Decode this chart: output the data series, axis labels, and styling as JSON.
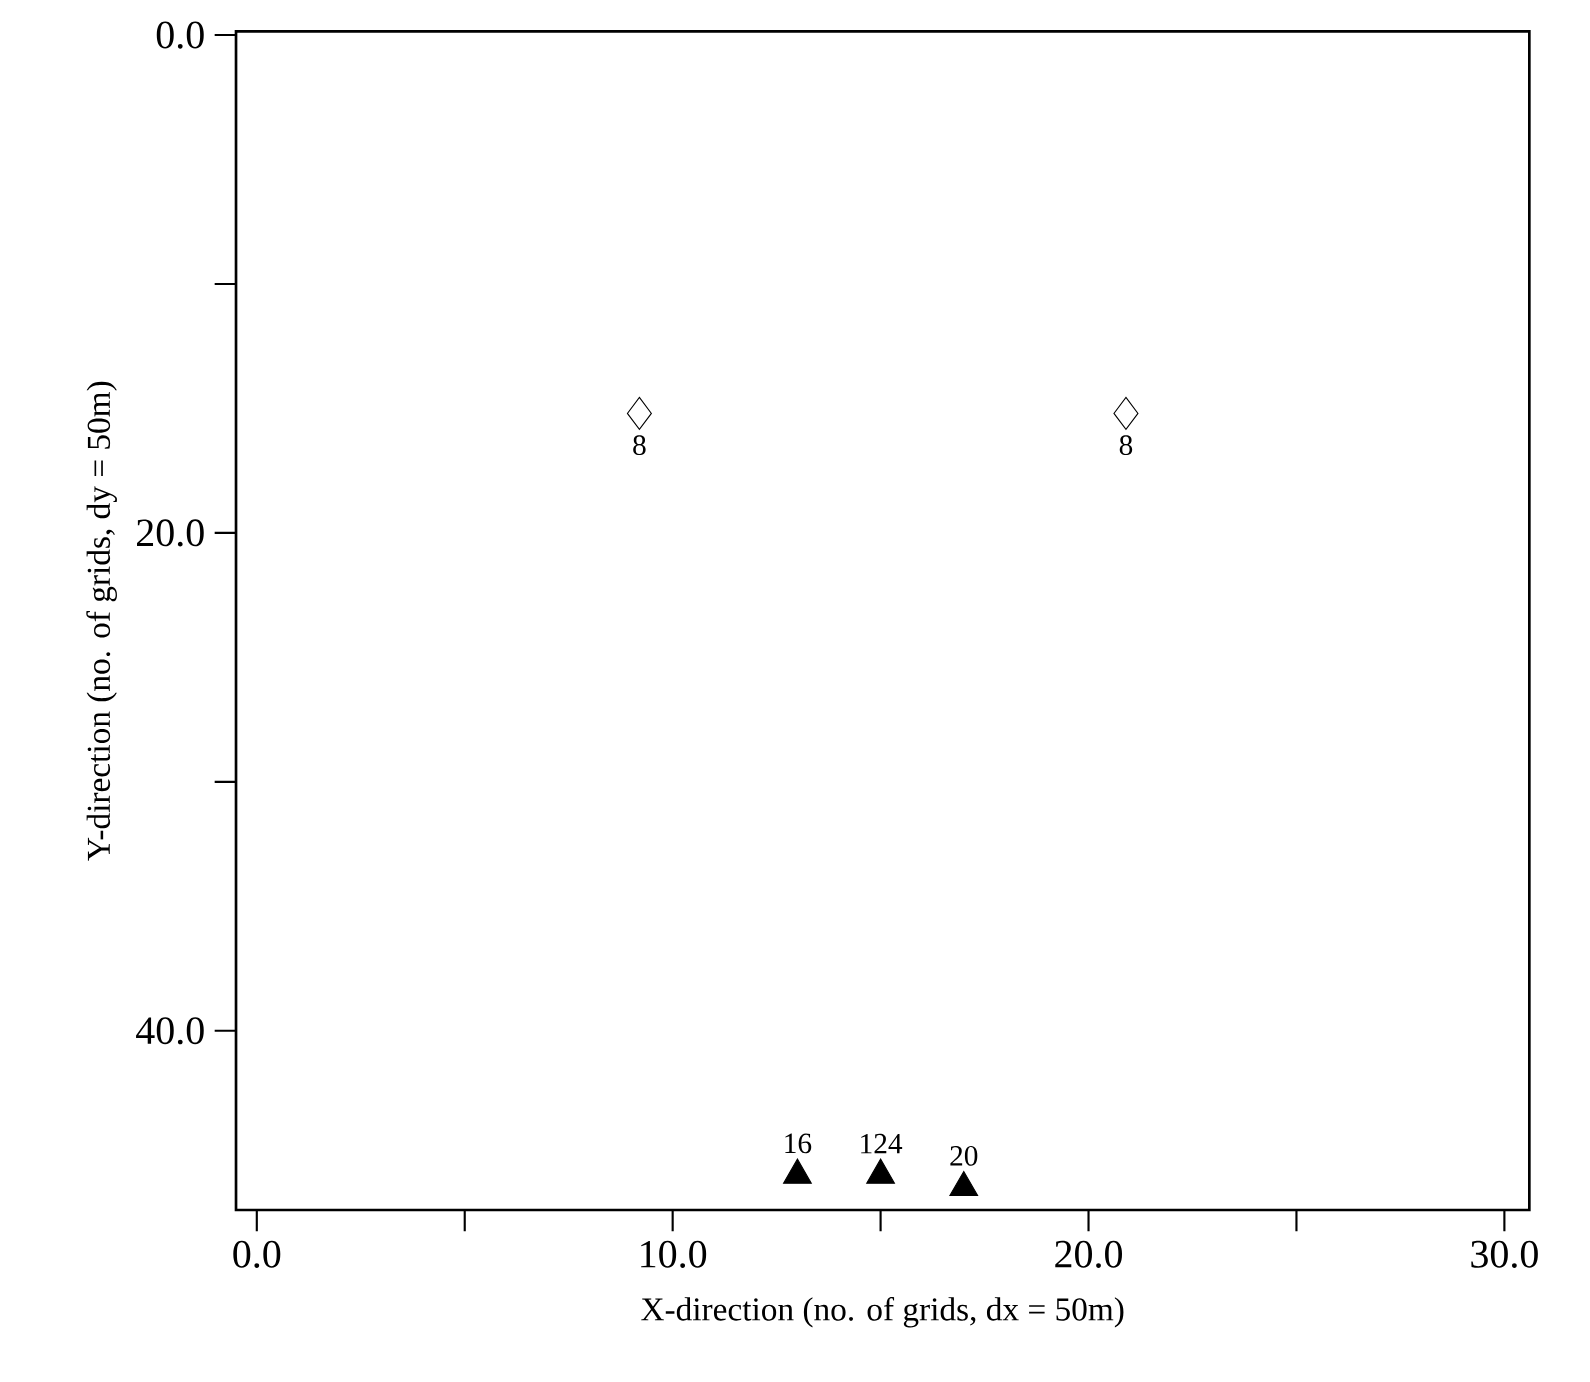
{
  "chart_data": {
    "type": "scatter",
    "xlabel": "X-direction (no. of grids,  dx = 50m)",
    "ylabel": "Y-direction (no. of grids, dy = 50m)",
    "xlim": [
      -0.5,
      30.6
    ],
    "ylim": [
      47.2,
      -0.15
    ],
    "xticks": [
      {
        "value": 0,
        "label": "0.0"
      },
      {
        "value": 5,
        "label": null
      },
      {
        "value": 10,
        "label": "10.0"
      },
      {
        "value": 15,
        "label": null
      },
      {
        "value": 20,
        "label": "20.0"
      },
      {
        "value": 25,
        "label": null
      },
      {
        "value": 30,
        "label": "30.0"
      }
    ],
    "yticks": [
      {
        "value": 0,
        "label": "0.0"
      },
      {
        "value": 10,
        "label": null
      },
      {
        "value": 20,
        "label": "20.0"
      },
      {
        "value": 30,
        "label": null
      },
      {
        "value": 40,
        "label": "40.0"
      }
    ],
    "series": [
      {
        "color": "#000000",
        "marker": "diamond",
        "x": [
          9.2,
          20.9
        ],
        "values": [
          15.2,
          15.2
        ]
      },
      {
        "color": "#000000",
        "marker": "triangle",
        "x": [
          13.0,
          15.0,
          17.0
        ],
        "values": [
          45.8,
          45.8,
          46.3
        ]
      }
    ],
    "annotations": [
      {
        "text": "8",
        "x": 9.2,
        "y": 15.2
      },
      {
        "text": "8",
        "x": 20.9,
        "y": 15.2
      },
      {
        "text": "16",
        "x": 13.0,
        "y": 45.8
      },
      {
        "text": "124",
        "x": 15.0,
        "y": 45.8
      },
      {
        "text": "20",
        "x": 17.0,
        "y": 46.3
      }
    ]
  }
}
